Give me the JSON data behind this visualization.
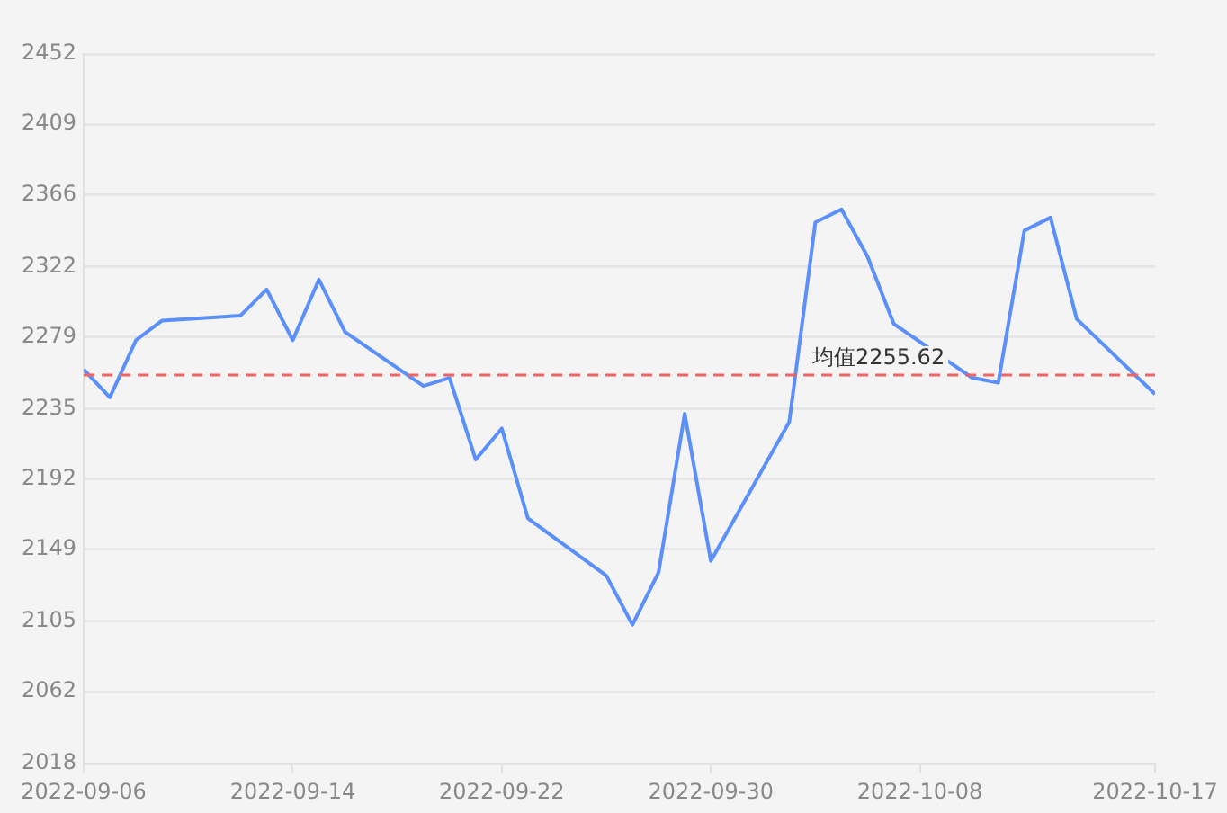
{
  "chart_data": {
    "type": "line",
    "x": [
      "2022-09-06",
      "2022-09-07",
      "2022-09-08",
      "2022-09-09",
      "2022-09-12",
      "2022-09-13",
      "2022-09-14",
      "2022-09-15",
      "2022-09-16",
      "2022-09-19",
      "2022-09-20",
      "2022-09-21",
      "2022-09-22",
      "2022-09-23",
      "2022-09-26",
      "2022-09-27",
      "2022-09-28",
      "2022-09-29",
      "2022-09-30",
      "2022-10-03",
      "2022-10-04",
      "2022-10-05",
      "2022-10-06",
      "2022-10-07",
      "2022-10-10",
      "2022-10-11",
      "2022-10-12",
      "2022-10-13",
      "2022-10-14",
      "2022-10-17"
    ],
    "series": [
      {
        "color": "#5b8ff9",
        "values": [
          2259,
          2242,
          2277,
          2289,
          2292,
          2308,
          2277,
          2314,
          2282,
          2249,
          2254,
          2204,
          2223,
          2168,
          2133,
          2103,
          2135,
          2232,
          2142,
          2227,
          2349,
          2357,
          2328,
          2287,
          2254,
          2251,
          2344,
          2352,
          2290,
          2244
        ]
      }
    ],
    "xlim": [
      "2022-09-06",
      "2022-10-17"
    ],
    "xticks": [
      {
        "value": "2022-09-06",
        "label": "2022-09-06"
      },
      {
        "value": "2022-09-14",
        "label": "2022-09-14"
      },
      {
        "value": "2022-09-22",
        "label": "2022-09-22"
      },
      {
        "value": "2022-09-30",
        "label": "2022-09-30"
      },
      {
        "value": "2022-10-08",
        "label": "2022-10-08"
      },
      {
        "value": "2022-10-17",
        "label": "2022-10-17"
      }
    ],
    "ylim": [
      2018,
      2452
    ],
    "yticks": [
      2018,
      2062,
      2105,
      2149,
      2192,
      2235,
      2279,
      2322,
      2366,
      2409,
      2452
    ],
    "ref_lines": [
      {
        "axis": "y",
        "value": 2255.62,
        "label": "均值2255.62",
        "color": "#f06464",
        "line_style": "dashed"
      }
    ],
    "grid": "y",
    "marker": "none",
    "line_style": "solid"
  }
}
